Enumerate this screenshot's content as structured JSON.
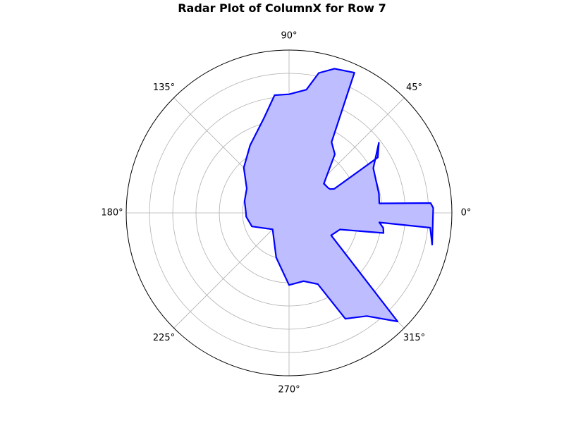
{
  "chart_data": {
    "type": "radar",
    "title": "Radar Plot of ColumnX for Row 7",
    "angle_tick_labels": [
      "0°",
      "45°",
      "90°",
      "135°",
      "180°",
      "225°",
      "270°",
      "315°"
    ],
    "angle_ticks_deg": [
      0,
      45,
      90,
      135,
      180,
      225,
      270,
      315
    ],
    "radial_rings": 7,
    "grid": true,
    "series": [
      {
        "color": "#0000ff",
        "fill_color": "#bdbdff",
        "points": [
          {
            "theta": -12.5,
            "r": 6.3
          },
          {
            "theta": -6,
            "r": 6.1
          },
          {
            "theta": -6,
            "r": 3.9
          },
          {
            "theta": -9,
            "r": 4.1
          },
          {
            "theta": -12,
            "r": 4.15
          },
          {
            "theta": -18,
            "r": 2.3
          },
          {
            "theta": -28,
            "r": 2.05
          },
          {
            "theta": -45,
            "r": 6.6
          },
          {
            "theta": -53,
            "r": 5.55
          },
          {
            "theta": -62,
            "r": 5.15
          },
          {
            "theta": -68,
            "r": 3.3
          },
          {
            "theta": -78,
            "r": 3.0
          },
          {
            "theta": -90,
            "r": 3.1
          },
          {
            "theta": -106,
            "r": 2.0
          },
          {
            "theta": -135,
            "r": 1.0
          },
          {
            "theta": -160,
            "r": 1.7
          },
          {
            "theta": -175,
            "r": 1.85
          },
          {
            "theta": 180,
            "r": 1.85
          },
          {
            "theta": 165,
            "r": 1.98
          },
          {
            "theta": 150,
            "r": 2.1
          },
          {
            "theta": 135,
            "r": 2.75
          },
          {
            "theta": 120,
            "r": 3.35
          },
          {
            "theta": 105,
            "r": 4.2
          },
          {
            "theta": 97,
            "r": 5.1
          },
          {
            "theta": 90,
            "r": 5.1
          },
          {
            "theta": 82,
            "r": 5.35
          },
          {
            "theta": 78,
            "r": 6.15
          },
          {
            "theta": 72.5,
            "r": 6.5
          },
          {
            "theta": 65,
            "r": 6.65
          },
          {
            "theta": 59,
            "r": 3.55
          },
          {
            "theta": 52,
            "r": 3.2
          },
          {
            "theta": 40,
            "r": 1.95
          },
          {
            "theta": 32,
            "r": 2.0
          },
          {
            "theta": 30,
            "r": 2.05
          },
          {
            "theta": 28,
            "r": 2.2
          },
          {
            "theta": 32,
            "r": 4.5
          },
          {
            "theta": 38,
            "r": 4.9
          },
          {
            "theta": 28,
            "r": 4.1
          },
          {
            "theta": 12,
            "r": 3.95
          },
          {
            "theta": 6,
            "r": 3.9
          },
          {
            "theta": 4,
            "r": 6.1
          },
          {
            "theta": 2,
            "r": 6.2
          }
        ]
      }
    ]
  }
}
